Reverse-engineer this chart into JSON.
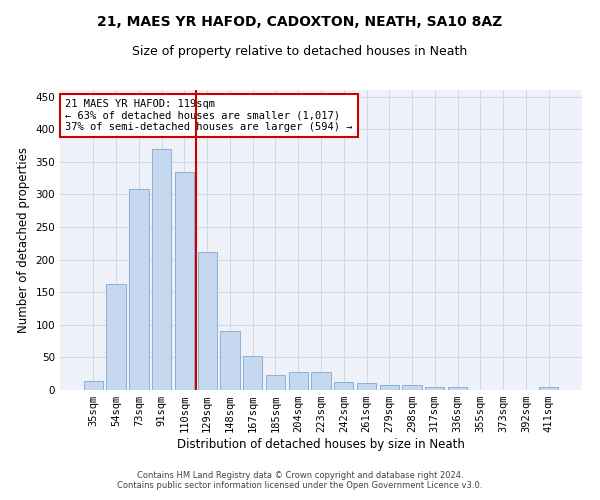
{
  "title1": "21, MAES YR HAFOD, CADOXTON, NEATH, SA10 8AZ",
  "title2": "Size of property relative to detached houses in Neath",
  "xlabel": "Distribution of detached houses by size in Neath",
  "ylabel": "Number of detached properties",
  "categories": [
    "35sqm",
    "54sqm",
    "73sqm",
    "91sqm",
    "110sqm",
    "129sqm",
    "148sqm",
    "167sqm",
    "185sqm",
    "204sqm",
    "223sqm",
    "242sqm",
    "261sqm",
    "279sqm",
    "298sqm",
    "317sqm",
    "336sqm",
    "355sqm",
    "373sqm",
    "392sqm",
    "411sqm"
  ],
  "values": [
    14,
    162,
    308,
    370,
    335,
    212,
    90,
    52,
    23,
    28,
    28,
    12,
    10,
    8,
    8,
    5,
    5,
    0,
    0,
    0,
    4
  ],
  "bar_color": "#c5d8f0",
  "bar_edge_color": "#7fa8d0",
  "vline_x_index": 4.5,
  "vline_color": "#cc0000",
  "annotation_line1": "21 MAES YR HAFOD: 119sqm",
  "annotation_line2": "← 63% of detached houses are smaller (1,017)",
  "annotation_line3": "37% of semi-detached houses are larger (594) →",
  "ylim": [
    0,
    460
  ],
  "yticks": [
    0,
    50,
    100,
    150,
    200,
    250,
    300,
    350,
    400,
    450
  ],
  "grid_color": "#d0d8e8",
  "bg_color": "#eef2f8",
  "footnote": "Contains HM Land Registry data © Crown copyright and database right 2024.\nContains public sector information licensed under the Open Government Licence v3.0.",
  "title1_fontsize": 10,
  "title2_fontsize": 9,
  "xlabel_fontsize": 8.5,
  "ylabel_fontsize": 8.5,
  "tick_fontsize": 7.5,
  "annot_fontsize": 7.5,
  "footnote_fontsize": 6.0
}
